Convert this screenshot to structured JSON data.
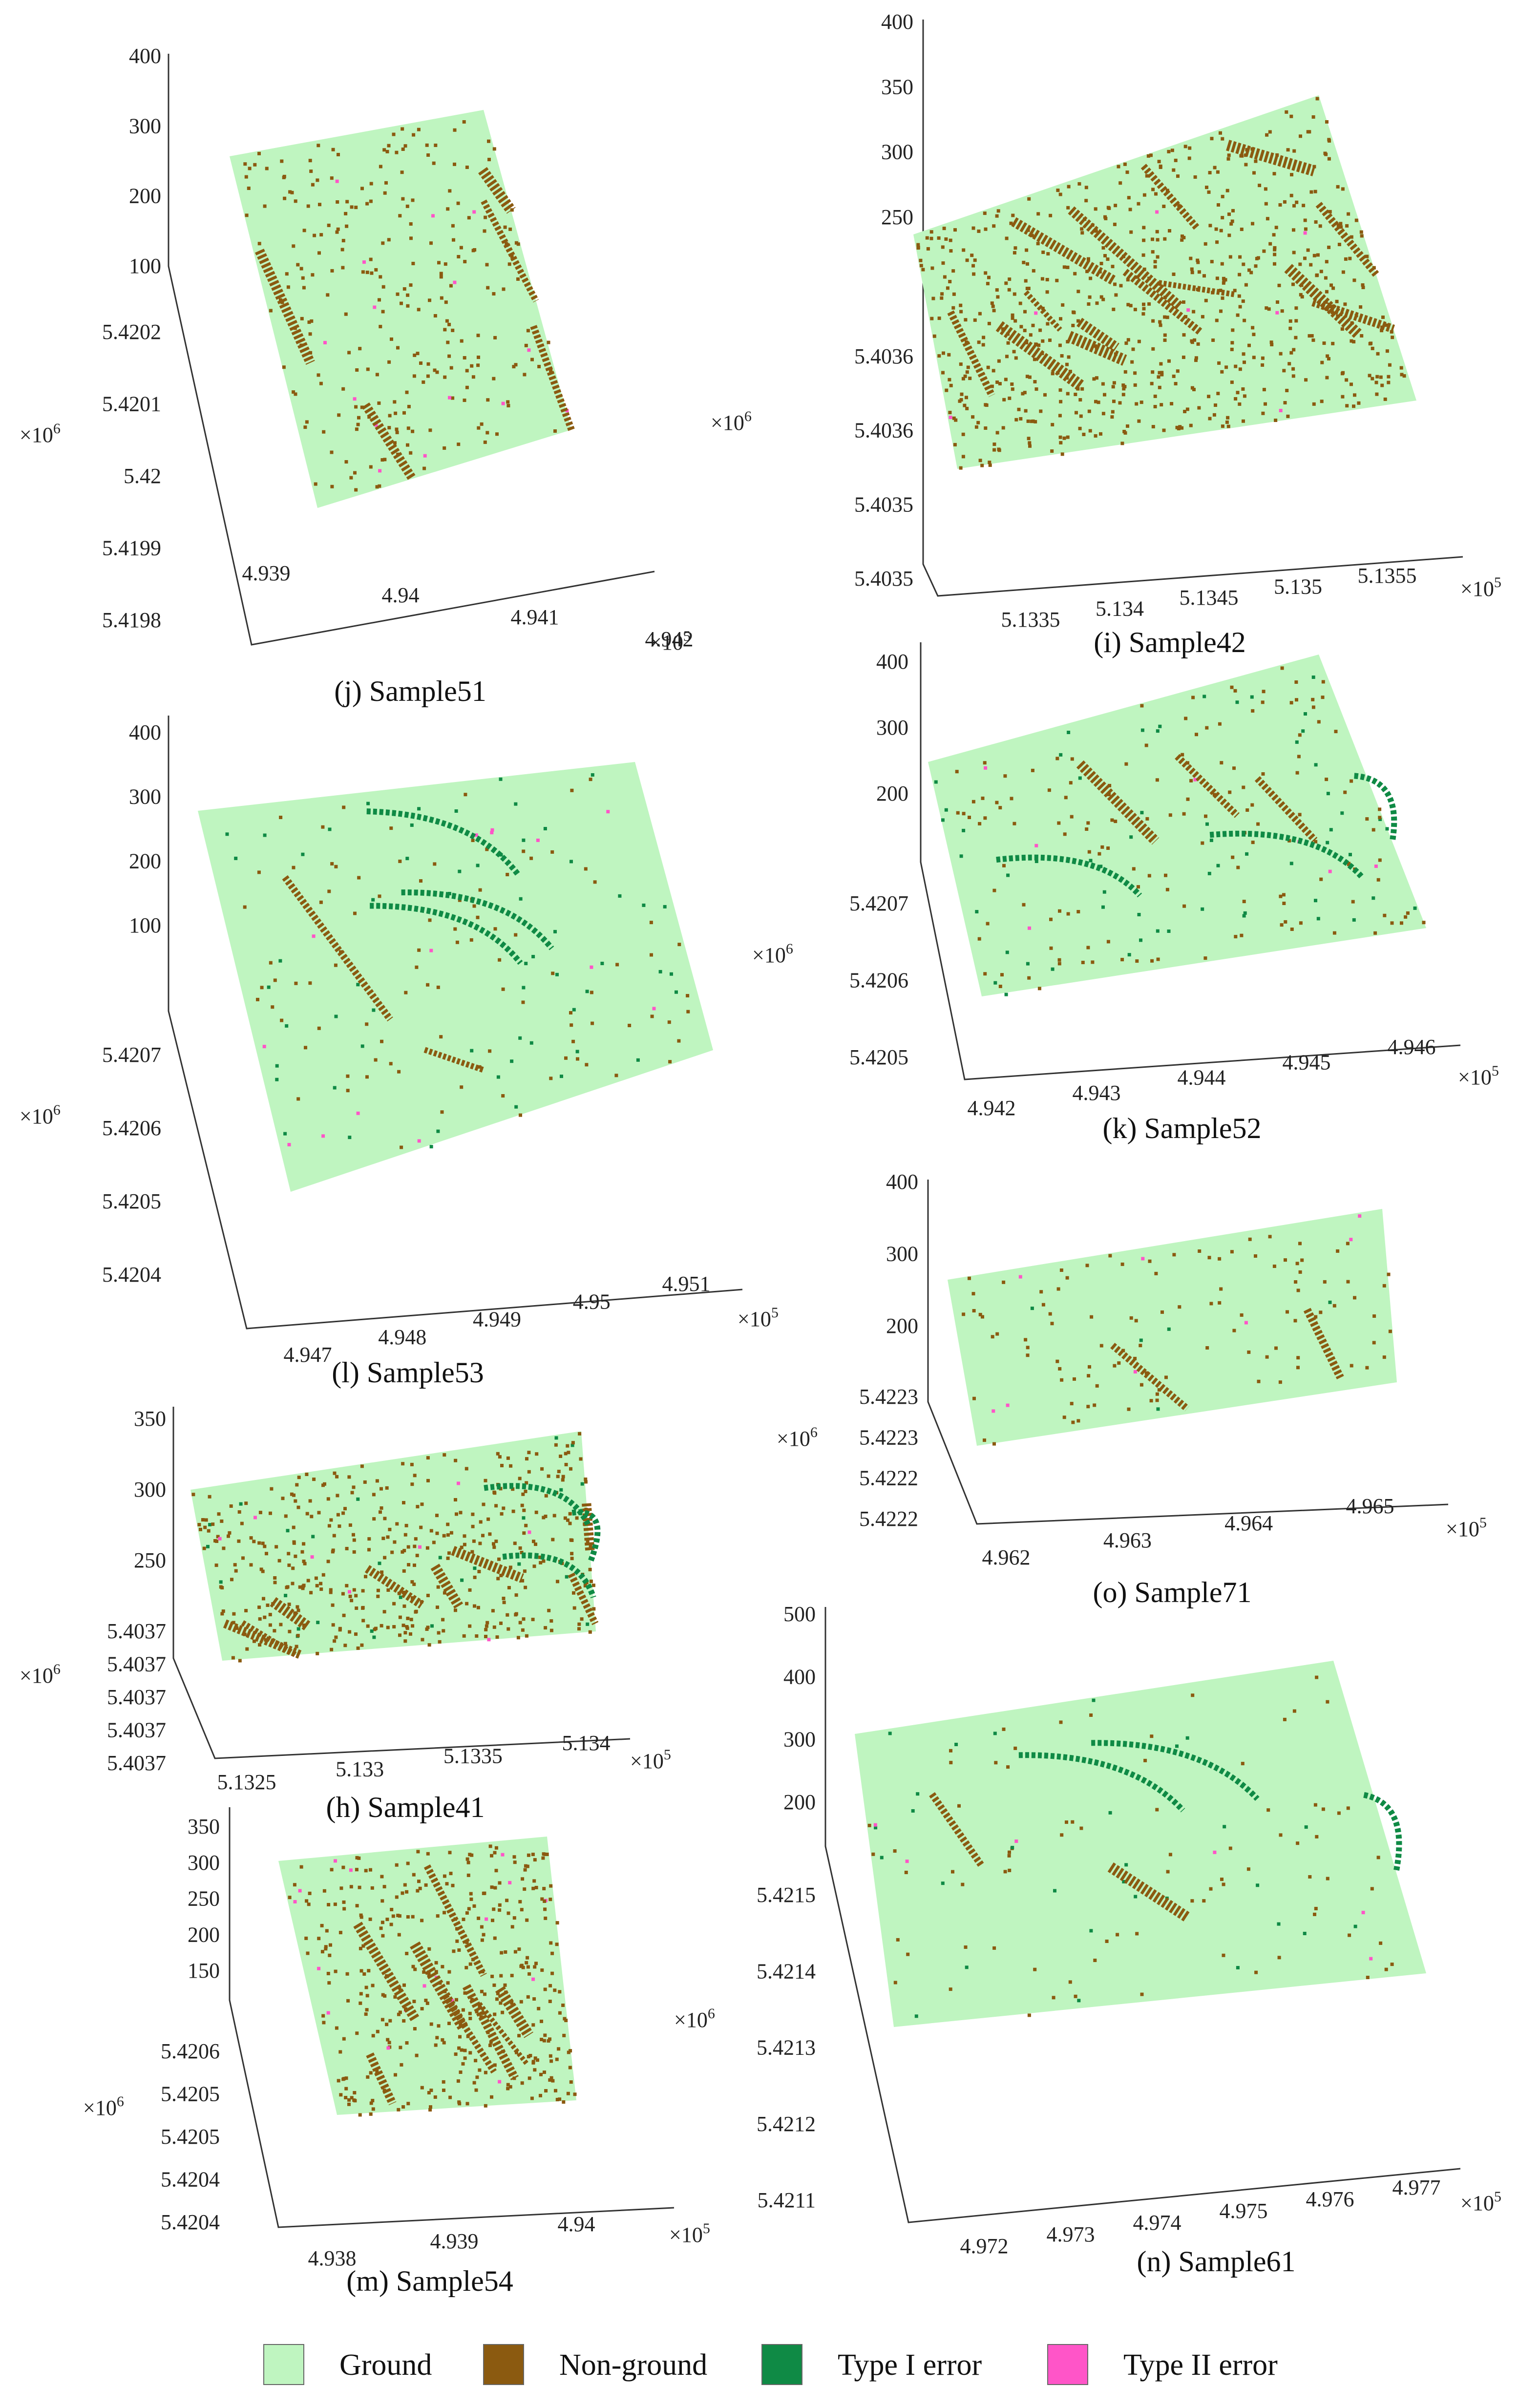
{
  "colors": {
    "ground": "#bff5c0",
    "non_ground": "#8b5a10",
    "type1": "#0f8a45",
    "type2": "#ff55c8",
    "axis": "#333333"
  },
  "chart_data": [
    {
      "id": "j",
      "type": "scatter",
      "caption": "(j) Sample51",
      "z_ticks": [
        "400",
        "300",
        "200",
        "100"
      ],
      "y_ticks": [
        "5.4202",
        "5.4201",
        "5.42",
        "5.4199",
        "5.4198"
      ],
      "y_scale": "×10",
      "y_exp": "6",
      "x_ticks": [
        "4.939",
        "4.94",
        "4.941",
        "4.942"
      ],
      "x_scale": "×10",
      "x_exp": "5",
      "nonground_fraction": 0.3,
      "type1_fraction": 0.0,
      "type2_fraction": 0.02
    },
    {
      "id": "i",
      "type": "scatter",
      "caption": "(i) Sample42",
      "z_ticks": [
        "400",
        "350",
        "300",
        "250"
      ],
      "y_ticks": [
        "5.4036",
        "5.4036",
        "5.4035",
        "5.4035"
      ],
      "y_scale": "×10",
      "y_exp": "6",
      "x_ticks": [
        "5.1335",
        "5.134",
        "5.1345",
        "5.135",
        "5.1355"
      ],
      "x_scale": "×10",
      "x_exp": "5",
      "nonground_fraction": 0.75,
      "type1_fraction": 0.0,
      "type2_fraction": 0.01
    },
    {
      "id": "l",
      "type": "scatter",
      "caption": "(l) Sample53",
      "z_ticks": [
        "400",
        "300",
        "200",
        "100"
      ],
      "y_ticks": [
        "5.4207",
        "5.4206",
        "5.4205",
        "5.4204"
      ],
      "y_scale": "×10",
      "y_exp": "6",
      "x_ticks": [
        "4.947",
        "4.948",
        "4.949",
        "4.95",
        "4.951"
      ],
      "x_scale": "×10",
      "x_exp": "5",
      "nonground_fraction": 0.12,
      "type1_fraction": 0.06,
      "type2_fraction": 0.01
    },
    {
      "id": "k",
      "type": "scatter",
      "caption": "(k) Sample52",
      "z_ticks": [
        "400",
        "300",
        "200"
      ],
      "y_ticks": [
        "5.4207",
        "5.4206",
        "5.4205"
      ],
      "y_scale": "×10",
      "y_exp": "6",
      "x_ticks": [
        "4.942",
        "4.943",
        "4.944",
        "4.945",
        "4.946"
      ],
      "x_scale": "×10",
      "x_exp": "5",
      "nonground_fraction": 0.18,
      "type1_fraction": 0.05,
      "type2_fraction": 0.015
    },
    {
      "id": "o",
      "type": "scatter",
      "caption": "(o) Sample71",
      "z_ticks": [
        "400",
        "300",
        "200"
      ],
      "y_ticks": [
        "5.4223",
        "5.4223",
        "5.4222",
        "5.4222"
      ],
      "y_scale": "×10",
      "y_exp": "6",
      "x_ticks": [
        "4.962",
        "4.963",
        "4.964",
        "4.965"
      ],
      "x_scale": "×10",
      "x_exp": "5",
      "nonground_fraction": 0.12,
      "type1_fraction": 0.01,
      "type2_fraction": 0.005
    },
    {
      "id": "h",
      "type": "scatter",
      "caption": "(h) Sample41",
      "z_ticks": [
        "350",
        "300",
        "250"
      ],
      "y_ticks": [
        "5.4037",
        "5.4037",
        "5.4037",
        "5.4037",
        "5.4037"
      ],
      "y_scale": "×10",
      "y_exp": "6",
      "x_ticks": [
        "5.1325",
        "5.133",
        "5.1335",
        "5.134"
      ],
      "x_scale": "×10",
      "x_exp": "5",
      "nonground_fraction": 0.45,
      "type1_fraction": 0.03,
      "type2_fraction": 0.015
    },
    {
      "id": "m",
      "type": "scatter",
      "caption": "(m) Sample54",
      "z_ticks": [
        "350",
        "300",
        "250",
        "200",
        "150"
      ],
      "y_ticks": [
        "5.4206",
        "5.4205",
        "5.4205",
        "5.4204",
        "5.4204"
      ],
      "y_scale": "×10",
      "y_exp": "6",
      "x_ticks": [
        "4.938",
        "4.939",
        "4.94"
      ],
      "x_scale": "×10",
      "x_exp": "5",
      "nonground_fraction": 0.45,
      "type1_fraction": 0.0,
      "type2_fraction": 0.015
    },
    {
      "id": "n",
      "type": "scatter",
      "caption": "(n) Sample61",
      "z_ticks": [
        "500",
        "400",
        "300",
        "200"
      ],
      "y_ticks": [
        "5.4215",
        "5.4214",
        "5.4213",
        "5.4212",
        "5.4211"
      ],
      "y_scale": "×10",
      "y_exp": "6",
      "x_ticks": [
        "4.972",
        "4.973",
        "4.974",
        "4.975",
        "4.976",
        "4.977"
      ],
      "x_scale": "×10",
      "x_exp": "5",
      "nonground_fraction": 0.1,
      "type1_fraction": 0.03,
      "type2_fraction": 0.005
    }
  ],
  "legend": [
    {
      "label": "Ground",
      "color": "#bff5c0"
    },
    {
      "label": "Non-ground",
      "color": "#8b5a10"
    },
    {
      "label": "Type I error",
      "color": "#0f8a45"
    },
    {
      "label": "Type II error",
      "color": "#ff55c8"
    }
  ]
}
